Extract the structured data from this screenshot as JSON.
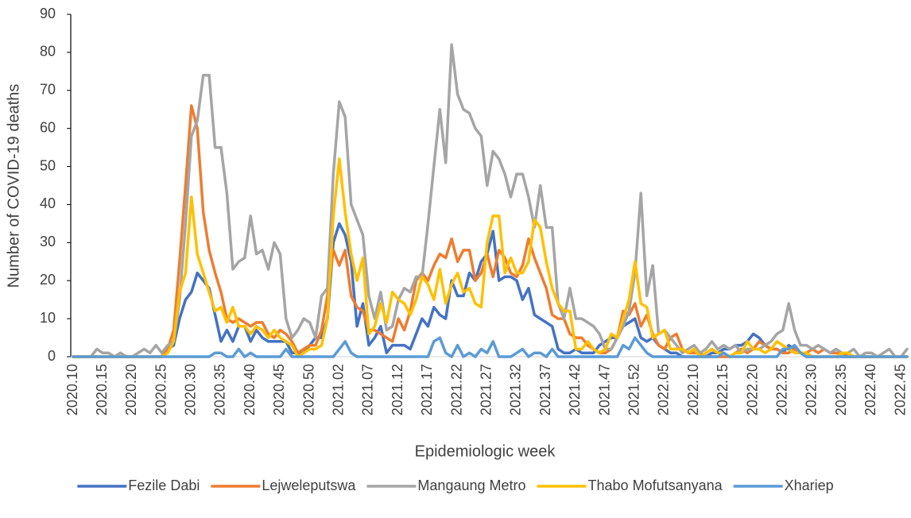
{
  "chart_data": {
    "type": "line",
    "x_label": "Epidemiologic week",
    "y_label": "Number of COVID-19 deaths",
    "categories": [
      "2020.10",
      null,
      null,
      null,
      null,
      "2020.15",
      null,
      null,
      null,
      null,
      "2020.20",
      null,
      null,
      null,
      null,
      "2020.25",
      null,
      null,
      null,
      null,
      "2020.30",
      null,
      null,
      null,
      null,
      "2020.35",
      null,
      null,
      null,
      null,
      "2020.40",
      null,
      null,
      null,
      null,
      "2020.45",
      null,
      null,
      null,
      null,
      "2020.50",
      null,
      null,
      null,
      null,
      "2021.02",
      null,
      null,
      null,
      null,
      "2021.07",
      null,
      null,
      null,
      null,
      "2021.12",
      null,
      null,
      null,
      null,
      "2021.17",
      null,
      null,
      null,
      null,
      "2021.22",
      null,
      null,
      null,
      null,
      "2021.27",
      null,
      null,
      null,
      null,
      "2021.32",
      null,
      null,
      null,
      null,
      "2021.37",
      null,
      null,
      null,
      null,
      "2021.42",
      null,
      null,
      null,
      null,
      "2021.47",
      null,
      null,
      null,
      null,
      "2021.52",
      null,
      null,
      null,
      null,
      "2022.05",
      null,
      null,
      null,
      null,
      "2022.10",
      null,
      null,
      null,
      null,
      "2022.15",
      null,
      null,
      null,
      null,
      "2022.20",
      null,
      null,
      null,
      null,
      "2022.25",
      null,
      null,
      null,
      null,
      "2022.30",
      null,
      null,
      null,
      null,
      "2022.35",
      null,
      null,
      null,
      null,
      "2022.40",
      null,
      null,
      null,
      null,
      "2022.45",
      null
    ],
    "series": [
      {
        "name": "Fezile Dabi",
        "color": "#4472c4",
        "values": [
          0,
          0,
          0,
          0,
          0,
          0,
          0,
          0,
          0,
          0,
          0,
          0,
          0,
          0,
          0,
          0,
          2,
          3,
          10,
          15,
          17,
          22,
          20,
          18,
          11,
          4,
          7,
          4,
          8,
          8,
          4,
          7,
          5,
          4,
          4,
          4,
          4,
          1,
          1,
          1,
          3,
          5,
          5,
          10,
          30,
          35,
          32,
          25,
          8,
          14,
          3,
          5,
          8,
          1,
          3,
          3,
          3,
          2,
          6,
          10,
          8,
          13,
          11,
          10,
          20,
          16,
          16,
          22,
          20,
          25,
          27,
          33,
          20,
          21,
          21,
          20,
          15,
          18,
          11,
          10,
          9,
          8,
          2,
          1,
          1,
          2,
          1,
          1,
          1,
          3,
          4,
          5,
          5,
          8,
          9,
          10,
          5,
          4,
          5,
          3,
          2,
          1,
          1,
          0,
          0,
          0,
          0,
          0,
          1,
          1,
          2,
          2,
          3,
          3,
          4,
          6,
          5,
          3,
          2,
          2,
          1,
          3,
          2,
          1,
          0,
          0,
          0,
          0,
          0,
          0,
          0,
          0,
          0,
          0,
          0,
          0,
          0,
          0,
          0,
          0,
          0,
          0
        ]
      },
      {
        "name": "Lejweleputswa",
        "color": "#ed7d31",
        "values": [
          0,
          0,
          0,
          0,
          0,
          0,
          0,
          0,
          0,
          0,
          0,
          0,
          0,
          0,
          0,
          0,
          2,
          7,
          25,
          45,
          66,
          60,
          38,
          28,
          22,
          17,
          10,
          9,
          10,
          9,
          8,
          9,
          9,
          6,
          5,
          7,
          6,
          4,
          1,
          2,
          3,
          3,
          7,
          16,
          28,
          24,
          28,
          16,
          13,
          12,
          7,
          7,
          6,
          5,
          4,
          10,
          7,
          12,
          20,
          22,
          20,
          24,
          27,
          26,
          31,
          25,
          28,
          28,
          20,
          22,
          27,
          21,
          28,
          26,
          22,
          21,
          24,
          31,
          26,
          22,
          18,
          11,
          10,
          10,
          6,
          5,
          5,
          3,
          2,
          1,
          1,
          2,
          5,
          12,
          11,
          14,
          8,
          11,
          6,
          3,
          2,
          5,
          6,
          2,
          1,
          1,
          1,
          0,
          0,
          0,
          0,
          0,
          1,
          2,
          1,
          2,
          4,
          3,
          2,
          2,
          1,
          1,
          2,
          1,
          1,
          2,
          1,
          2,
          1,
          1,
          1,
          0,
          0,
          0,
          0,
          0,
          0,
          0,
          0,
          0,
          0,
          0
        ]
      },
      {
        "name": "Mangaung Metro",
        "color": "#a5a5a5",
        "values": [
          0,
          0,
          0,
          0,
          2,
          1,
          1,
          0,
          1,
          0,
          0,
          1,
          2,
          1,
          3,
          1,
          3,
          4,
          15,
          35,
          58,
          62,
          74,
          74,
          55,
          55,
          43,
          23,
          25,
          26,
          37,
          27,
          28,
          23,
          30,
          27,
          10,
          5,
          7,
          10,
          9,
          5,
          16,
          18,
          48,
          67,
          63,
          40,
          36,
          32,
          16,
          10,
          17,
          7,
          8,
          15,
          18,
          17,
          21,
          21,
          35,
          50,
          65,
          51,
          82,
          69,
          65,
          64,
          60,
          58,
          45,
          54,
          52,
          48,
          42,
          48,
          48,
          42,
          34,
          45,
          34,
          34,
          14,
          10,
          18,
          10,
          10,
          9,
          8,
          6,
          2,
          2,
          5,
          8,
          12,
          22,
          43,
          16,
          24,
          6,
          7,
          5,
          3,
          1,
          2,
          3,
          1,
          2,
          4,
          2,
          3,
          2,
          3,
          1,
          2,
          2,
          2,
          3,
          4,
          6,
          7,
          14,
          7,
          3,
          3,
          2,
          3,
          2,
          1,
          2,
          1,
          1,
          2,
          0,
          1,
          1,
          0,
          1,
          2,
          0,
          0,
          2
        ]
      },
      {
        "name": "Thabo Mofutsanyana",
        "color": "#ffc000",
        "values": [
          0,
          0,
          0,
          0,
          0,
          0,
          0,
          0,
          0,
          0,
          0,
          0,
          0,
          0,
          0,
          0,
          1,
          4,
          17,
          22,
          42,
          27,
          22,
          17,
          12,
          13,
          9,
          13,
          8,
          8,
          6,
          8,
          7,
          5,
          7,
          5,
          4,
          3,
          0,
          1,
          2,
          2,
          3,
          10,
          37,
          52,
          38,
          27,
          20,
          26,
          6,
          8,
          14,
          9,
          17,
          15,
          14,
          11,
          15,
          21,
          19,
          15,
          23,
          14,
          19,
          22,
          17,
          18,
          14,
          13,
          30,
          37,
          37,
          22,
          26,
          22,
          22,
          25,
          36,
          34,
          25,
          18,
          14,
          12,
          12,
          2,
          2,
          4,
          2,
          1,
          2,
          6,
          5,
          10,
          15,
          25,
          14,
          13,
          5,
          6,
          7,
          2,
          2,
          2,
          1,
          2,
          0,
          1,
          2,
          1,
          1,
          0,
          1,
          1,
          4,
          2,
          2,
          1,
          2,
          4,
          3,
          2,
          1,
          1,
          1,
          0,
          0,
          0,
          0,
          0,
          1,
          1,
          0,
          0,
          0,
          0,
          0,
          0,
          0,
          0,
          0,
          0
        ]
      },
      {
        "name": "Xhariep",
        "color": "#5b9bd5",
        "values": [
          0,
          0,
          0,
          0,
          0,
          0,
          0,
          0,
          0,
          0,
          0,
          0,
          0,
          0,
          0,
          0,
          0,
          0,
          0,
          0,
          0,
          0,
          0,
          0,
          1,
          1,
          0,
          0,
          2,
          0,
          1,
          0,
          0,
          0,
          0,
          0,
          2,
          0,
          0,
          0,
          0,
          0,
          0,
          0,
          0,
          2,
          4,
          1,
          0,
          0,
          0,
          0,
          0,
          0,
          0,
          0,
          0,
          0,
          0,
          0,
          0,
          4,
          5,
          1,
          0,
          3,
          0,
          1,
          0,
          2,
          1,
          4,
          0,
          0,
          0,
          1,
          2,
          0,
          1,
          1,
          0,
          2,
          0,
          0,
          0,
          0,
          0,
          0,
          0,
          0,
          0,
          0,
          0,
          3,
          2,
          5,
          3,
          1,
          0,
          0,
          0,
          0,
          0,
          0,
          0,
          0,
          0,
          0,
          0,
          0,
          1,
          0,
          0,
          0,
          0,
          0,
          0,
          0,
          0,
          0,
          2,
          2,
          3,
          1,
          0,
          0,
          0,
          0,
          0,
          0,
          0,
          0,
          0,
          0,
          0,
          0,
          0,
          0,
          0,
          0,
          0,
          0
        ]
      }
    ],
    "ylim": [
      0,
      90
    ],
    "yticks": [
      0,
      10,
      20,
      30,
      40,
      50,
      60,
      70,
      80,
      90
    ],
    "grid": false,
    "legend": "bottom"
  }
}
